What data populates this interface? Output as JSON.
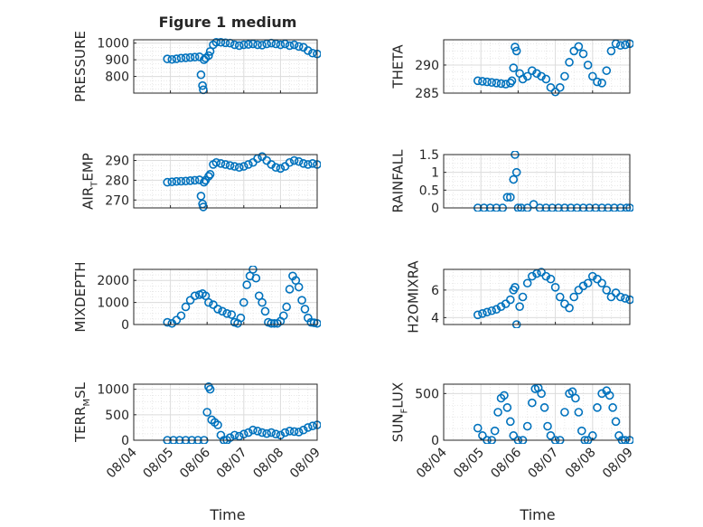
{
  "figure": {
    "title": "Figure 1 medium",
    "xlabel": "Time"
  },
  "chart_data": [
    {
      "type": "scatter",
      "title": "Figure 1 medium",
      "ylabel": "PRESSURE",
      "xlabel": "",
      "ylim": [
        700,
        1020
      ],
      "xlim": [
        "08/04",
        "08/09"
      ],
      "grid": true,
      "x_ticks": [
        "08/04",
        "08/05",
        "08/06",
        "08/07",
        "08/08",
        "08/09"
      ],
      "y_ticks": [
        800,
        900,
        1000
      ],
      "show_xtick_labels": false,
      "color": "#0072BD",
      "x": [
        "08/04 22:00",
        "08/05 01:00",
        "08/05 04:00",
        "08/05 07:00",
        "08/05 10:00",
        "08/05 13:00",
        "08/05 16:00",
        "08/05 19:00",
        "08/05 20:00",
        "08/05 21:00",
        "08/05 21:30",
        "08/05 22:00",
        "08/05 23:00",
        "08/06 01:00",
        "08/06 02:00",
        "08/06 04:00",
        "08/06 06:00",
        "08/06 09:00",
        "08/06 12:00",
        "08/06 15:00",
        "08/06 18:00",
        "08/06 21:00",
        "08/07 00:00",
        "08/07 03:00",
        "08/07 06:00",
        "08/07 09:00",
        "08/07 12:00",
        "08/07 15:00",
        "08/07 18:00",
        "08/07 21:00",
        "08/08 00:00",
        "08/08 03:00",
        "08/08 06:00",
        "08/08 09:00",
        "08/08 12:00",
        "08/08 15:00",
        "08/08 18:00",
        "08/08 21:00",
        "08/09 00:00"
      ],
      "y": [
        905,
        902,
        906,
        910,
        912,
        914,
        916,
        918,
        810,
        745,
        720,
        900,
        910,
        925,
        950,
        990,
        1005,
        1005,
        1002,
        1000,
        990,
        985,
        990,
        992,
        995,
        990,
        988,
        995,
        1000,
        995,
        990,
        995,
        985,
        990,
        980,
        975,
        955,
        940,
        935
      ]
    },
    {
      "type": "scatter",
      "ylabel": "THETA",
      "xlabel": "",
      "ylim": [
        285,
        294.5
      ],
      "xlim": [
        "08/04",
        "08/09"
      ],
      "grid": true,
      "x_ticks": [
        "08/04",
        "08/05",
        "08/06",
        "08/07",
        "08/08",
        "08/09"
      ],
      "y_ticks": [
        285,
        290
      ],
      "show_xtick_labels": false,
      "color": "#0072BD",
      "x": [
        "08/04 22:00",
        "08/05 01:00",
        "08/05 04:00",
        "08/05 07:00",
        "08/05 10:00",
        "08/05 13:00",
        "08/05 16:00",
        "08/05 19:00",
        "08/05 20:00",
        "08/05 21:00",
        "08/05 22:00",
        "08/05 23:00",
        "08/06 01:00",
        "08/06 03:00",
        "08/06 06:00",
        "08/06 09:00",
        "08/06 12:00",
        "08/06 15:00",
        "08/06 18:00",
        "08/06 21:00",
        "08/07 00:00",
        "08/07 03:00",
        "08/07 06:00",
        "08/07 09:00",
        "08/07 12:00",
        "08/07 15:00",
        "08/07 18:00",
        "08/07 21:00",
        "08/08 00:00",
        "08/08 03:00",
        "08/08 06:00",
        "08/08 09:00",
        "08/08 12:00",
        "08/08 15:00",
        "08/08 18:00",
        "08/08 21:00",
        "08/09 00:00"
      ],
      "y": [
        287.2,
        287.1,
        287,
        286.9,
        286.8,
        286.7,
        286.6,
        286.8,
        287.2,
        289.5,
        293.2,
        292.5,
        288.5,
        287.5,
        288,
        289,
        288.5,
        288,
        287.5,
        286,
        285.2,
        286,
        288,
        290.5,
        292.5,
        293.3,
        292,
        290,
        288,
        287,
        286.8,
        289,
        292.5,
        293.8,
        293.5,
        293.6,
        293.8
      ]
    },
    {
      "type": "scatter",
      "ylabel": "AIR_TEMP",
      "ylabel_main": "AIR",
      "ylabel_sub": "T",
      "ylabel_rest": "EMP",
      "xlabel": "",
      "ylim": [
        266,
        293
      ],
      "xlim": [
        "08/04",
        "08/09"
      ],
      "grid": true,
      "x_ticks": [
        "08/04",
        "08/05",
        "08/06",
        "08/07",
        "08/08",
        "08/09"
      ],
      "y_ticks": [
        270,
        280,
        290
      ],
      "show_xtick_labels": false,
      "color": "#0072BD",
      "x": [
        "08/04 22:00",
        "08/05 01:00",
        "08/05 04:00",
        "08/05 07:00",
        "08/05 10:00",
        "08/05 13:00",
        "08/05 16:00",
        "08/05 19:00",
        "08/05 20:00",
        "08/05 21:00",
        "08/05 21:30",
        "08/05 22:00",
        "08/05 23:00",
        "08/06 01:00",
        "08/06 02:00",
        "08/06 04:00",
        "08/06 06:00",
        "08/06 09:00",
        "08/06 12:00",
        "08/06 15:00",
        "08/06 18:00",
        "08/06 21:00",
        "08/07 00:00",
        "08/07 03:00",
        "08/07 06:00",
        "08/07 09:00",
        "08/07 12:00",
        "08/07 15:00",
        "08/07 18:00",
        "08/07 21:00",
        "08/08 00:00",
        "08/08 03:00",
        "08/08 06:00",
        "08/08 09:00",
        "08/08 12:00",
        "08/08 15:00",
        "08/08 18:00",
        "08/08 21:00",
        "08/09 00:00"
      ],
      "y": [
        279,
        279.2,
        279.4,
        279.5,
        279.6,
        279.8,
        280,
        280.2,
        272,
        268,
        266.5,
        279,
        280,
        282,
        283,
        288,
        289,
        288.5,
        288,
        287.5,
        287,
        286.5,
        287,
        288,
        289,
        291,
        292,
        290,
        288,
        286.5,
        286,
        287,
        289,
        290,
        289.5,
        288.5,
        288,
        288.5,
        288
      ]
    },
    {
      "type": "scatter",
      "ylabel": "RAINFALL",
      "xlabel": "",
      "ylim": [
        0,
        1.5
      ],
      "xlim": [
        "08/04",
        "08/09"
      ],
      "grid": true,
      "x_ticks": [
        "08/04",
        "08/05",
        "08/06",
        "08/07",
        "08/08",
        "08/09"
      ],
      "y_ticks": [
        0,
        0.5,
        1,
        1.5
      ],
      "show_xtick_labels": false,
      "color": "#0072BD",
      "x": [
        "08/04 22:00",
        "08/05 02:00",
        "08/05 06:00",
        "08/05 10:00",
        "08/05 14:00",
        "08/05 17:00",
        "08/05 19:00",
        "08/05 21:00",
        "08/05 22:00",
        "08/05 23:00",
        "08/06 00:00",
        "08/06 02:00",
        "08/06 06:00",
        "08/06 10:00",
        "08/06 14:00",
        "08/06 18:00",
        "08/06 22:00",
        "08/07 02:00",
        "08/07 06:00",
        "08/07 10:00",
        "08/07 14:00",
        "08/07 18:00",
        "08/07 22:00",
        "08/08 02:00",
        "08/08 06:00",
        "08/08 10:00",
        "08/08 14:00",
        "08/08 18:00",
        "08/08 22:00",
        "08/09 00:00"
      ],
      "y": [
        0,
        0,
        0,
        0,
        0,
        0.3,
        0.3,
        0.8,
        1.5,
        1,
        0,
        0,
        0,
        0.1,
        0,
        0,
        0,
        0,
        0,
        0,
        0,
        0,
        0,
        0,
        0,
        0,
        0,
        0,
        0,
        0
      ]
    },
    {
      "type": "scatter",
      "ylabel": "MIXDEPTH",
      "xlabel": "",
      "ylim": [
        0,
        2500
      ],
      "xlim": [
        "08/04",
        "08/09"
      ],
      "grid": true,
      "x_ticks": [
        "08/04",
        "08/05",
        "08/06",
        "08/07",
        "08/08",
        "08/09"
      ],
      "y_ticks": [
        0,
        1000,
        2000
      ],
      "show_xtick_labels": false,
      "color": "#0072BD",
      "x": [
        "08/04 22:00",
        "08/05 01:00",
        "08/05 04:00",
        "08/05 07:00",
        "08/05 10:00",
        "08/05 13:00",
        "08/05 16:00",
        "08/05 19:00",
        "08/05 21:00",
        "08/05 23:00",
        "08/06 01:00",
        "08/06 04:00",
        "08/06 07:00",
        "08/06 10:00",
        "08/06 13:00",
        "08/06 16:00",
        "08/06 18:00",
        "08/06 20:00",
        "08/06 22:00",
        "08/07 00:00",
        "08/07 02:00",
        "08/07 04:00",
        "08/07 06:00",
        "08/07 08:00",
        "08/07 10:00",
        "08/07 12:00",
        "08/07 14:00",
        "08/07 16:00",
        "08/07 18:00",
        "08/07 20:00",
        "08/07 22:00",
        "08/08 00:00",
        "08/08 02:00",
        "08/08 04:00",
        "08/08 06:00",
        "08/08 08:00",
        "08/08 10:00",
        "08/08 12:00",
        "08/08 14:00",
        "08/08 16:00",
        "08/08 18:00",
        "08/08 20:00",
        "08/08 22:00",
        "08/09 00:00"
      ],
      "y": [
        100,
        50,
        200,
        400,
        800,
        1100,
        1300,
        1350,
        1400,
        1300,
        1000,
        900,
        700,
        600,
        500,
        450,
        100,
        50,
        300,
        1000,
        1800,
        2200,
        2500,
        2100,
        1300,
        1000,
        600,
        100,
        50,
        50,
        50,
        150,
        400,
        800,
        1600,
        2200,
        2000,
        1700,
        1100,
        700,
        300,
        100,
        80,
        50
      ]
    },
    {
      "type": "scatter",
      "ylabel": "H2OMIXRA",
      "xlabel": "",
      "ylim": [
        3.5,
        7.5
      ],
      "xlim": [
        "08/04",
        "08/09"
      ],
      "grid": true,
      "x_ticks": [
        "08/04",
        "08/05",
        "08/06",
        "08/07",
        "08/08",
        "08/09"
      ],
      "y_ticks": [
        4,
        6
      ],
      "show_xtick_labels": false,
      "color": "#0072BD",
      "x": [
        "08/04 22:00",
        "08/05 01:00",
        "08/05 04:00",
        "08/05 07:00",
        "08/05 10:00",
        "08/05 13:00",
        "08/05 16:00",
        "08/05 19:00",
        "08/05 21:00",
        "08/05 22:00",
        "08/05 23:00",
        "08/06 01:00",
        "08/06 03:00",
        "08/06 06:00",
        "08/06 09:00",
        "08/06 12:00",
        "08/06 15:00",
        "08/06 18:00",
        "08/06 21:00",
        "08/07 00:00",
        "08/07 03:00",
        "08/07 06:00",
        "08/07 09:00",
        "08/07 12:00",
        "08/07 15:00",
        "08/07 18:00",
        "08/07 21:00",
        "08/08 00:00",
        "08/08 03:00",
        "08/08 06:00",
        "08/08 09:00",
        "08/08 12:00",
        "08/08 15:00",
        "08/08 18:00",
        "08/08 21:00",
        "08/09 00:00"
      ],
      "y": [
        4.2,
        4.3,
        4.4,
        4.5,
        4.6,
        4.8,
        5,
        5.3,
        6,
        6.2,
        3.5,
        4.8,
        5.5,
        6.5,
        7,
        7.2,
        7.3,
        7,
        6.8,
        6.2,
        5.5,
        5,
        4.7,
        5.5,
        6,
        6.3,
        6.5,
        7,
        6.8,
        6.5,
        6,
        5.5,
        5.8,
        5.5,
        5.4,
        5.3
      ]
    },
    {
      "type": "scatter",
      "ylabel": "TERR_MSL",
      "ylabel_main": "TERR",
      "ylabel_sub": "M",
      "ylabel_rest": "SL",
      "xlabel": "Time",
      "ylim": [
        0,
        1100
      ],
      "xlim": [
        "08/04",
        "08/09"
      ],
      "grid": true,
      "x_ticks": [
        "08/04",
        "08/05",
        "08/06",
        "08/07",
        "08/08",
        "08/09"
      ],
      "y_ticks": [
        0,
        500,
        1000
      ],
      "show_xtick_labels": true,
      "color": "#0072BD",
      "x": [
        "08/04 22:00",
        "08/05 02:00",
        "08/05 06:00",
        "08/05 10:00",
        "08/05 14:00",
        "08/05 18:00",
        "08/05 22:00",
        "08/06 00:00",
        "08/06 01:00",
        "08/06 02:00",
        "08/06 03:00",
        "08/06 05:00",
        "08/06 07:00",
        "08/06 09:00",
        "08/06 11:00",
        "08/06 13:00",
        "08/06 15:00",
        "08/06 18:00",
        "08/06 21:00",
        "08/07 00:00",
        "08/07 03:00",
        "08/07 06:00",
        "08/07 09:00",
        "08/07 12:00",
        "08/07 15:00",
        "08/07 18:00",
        "08/07 21:00",
        "08/08 00:00",
        "08/08 03:00",
        "08/08 06:00",
        "08/08 09:00",
        "08/08 12:00",
        "08/08 15:00",
        "08/08 18:00",
        "08/08 21:00",
        "08/09 00:00"
      ],
      "y": [
        0,
        0,
        0,
        0,
        0,
        0,
        0,
        550,
        1050,
        1000,
        400,
        350,
        300,
        100,
        0,
        0,
        50,
        100,
        80,
        120,
        150,
        200,
        180,
        150,
        130,
        150,
        120,
        100,
        150,
        180,
        170,
        160,
        200,
        250,
        280,
        300
      ]
    },
    {
      "type": "scatter",
      "ylabel": "SUN_FLUX",
      "ylabel_main": "SUN",
      "ylabel_sub": "F",
      "ylabel_rest": "LUX",
      "xlabel": "Time",
      "ylim": [
        0,
        600
      ],
      "xlim": [
        "08/04",
        "08/09"
      ],
      "grid": true,
      "x_ticks": [
        "08/04",
        "08/05",
        "08/06",
        "08/07",
        "08/08",
        "08/09"
      ],
      "y_ticks": [
        0,
        500
      ],
      "show_xtick_labels": true,
      "color": "#0072BD",
      "x": [
        "08/04 22:00",
        "08/05 01:00",
        "08/05 04:00",
        "08/05 07:00",
        "08/05 09:00",
        "08/05 11:00",
        "08/05 13:00",
        "08/05 15:00",
        "08/05 17:00",
        "08/05 19:00",
        "08/05 21:00",
        "08/06 00:00",
        "08/06 03:00",
        "08/06 06:00",
        "08/06 09:00",
        "08/06 11:00",
        "08/06 13:00",
        "08/06 15:00",
        "08/06 17:00",
        "08/06 19:00",
        "08/06 21:00",
        "08/07 00:00",
        "08/07 03:00",
        "08/07 06:00",
        "08/07 09:00",
        "08/07 11:00",
        "08/07 13:00",
        "08/07 15:00",
        "08/07 17:00",
        "08/07 19:00",
        "08/07 21:00",
        "08/08 00:00",
        "08/08 03:00",
        "08/08 06:00",
        "08/08 09:00",
        "08/08 11:00",
        "08/08 13:00",
        "08/08 15:00",
        "08/08 17:00",
        "08/08 19:00",
        "08/08 21:00",
        "08/09 00:00"
      ],
      "y": [
        130,
        50,
        0,
        0,
        100,
        300,
        450,
        480,
        350,
        200,
        50,
        0,
        0,
        150,
        400,
        550,
        560,
        500,
        350,
        150,
        50,
        0,
        0,
        300,
        500,
        520,
        450,
        300,
        100,
        0,
        0,
        50,
        350,
        500,
        530,
        480,
        350,
        200,
        50,
        0,
        0,
        0
      ]
    }
  ]
}
